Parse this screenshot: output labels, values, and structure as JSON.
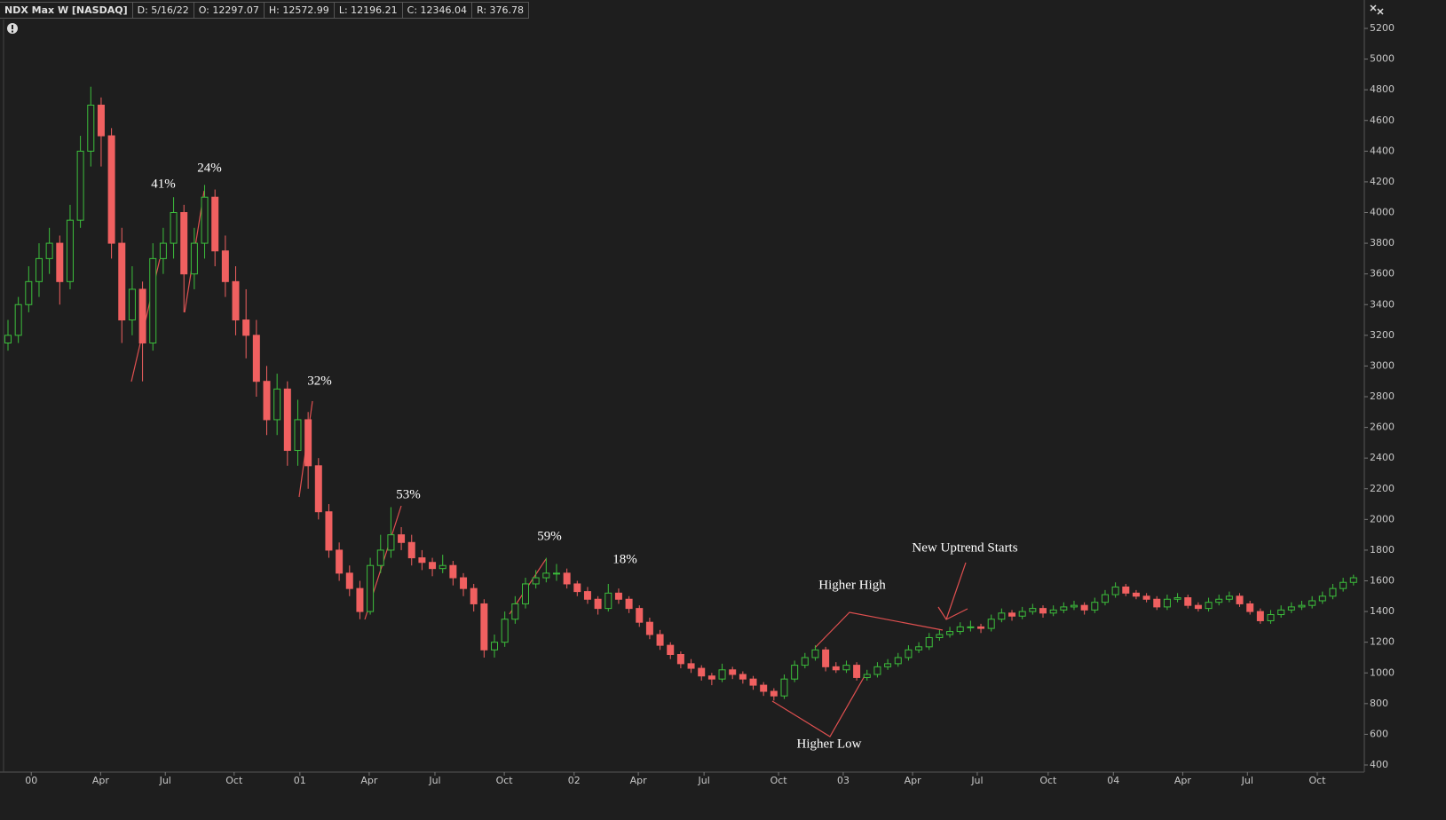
{
  "header": {
    "symbol": "NDX Max W [NASDAQ]",
    "fields": [
      "D: 5/16/22",
      "O: 12297.07",
      "H: 12572.99",
      "L: 12196.21",
      "C: 12346.04",
      "R: 376.78"
    ]
  },
  "chart_data": {
    "type": "candlestick",
    "up_color": "#3cbf3c",
    "down_color": "#f06060",
    "annotations": [
      "41%",
      "24%",
      "32%",
      "53%",
      "59%",
      "18%",
      "Higher High",
      "New Uptrend Starts",
      "Higher Low"
    ],
    "xlim": [
      -1,
      262
    ],
    "xticks": [
      {
        "value": 4.5,
        "label": "00"
      },
      {
        "value": 17.9,
        "label": "Apr"
      },
      {
        "value": 30.4,
        "label": "Jul"
      },
      {
        "value": 43.7,
        "label": "Oct"
      },
      {
        "value": 56.4,
        "label": "01"
      },
      {
        "value": 69.8,
        "label": "Apr"
      },
      {
        "value": 82.5,
        "label": "Jul"
      },
      {
        "value": 95.9,
        "label": "Oct"
      },
      {
        "value": 109.4,
        "label": "02"
      },
      {
        "value": 121.8,
        "label": "Apr"
      },
      {
        "value": 134.5,
        "label": "Jul"
      },
      {
        "value": 148.9,
        "label": "Oct"
      },
      {
        "value": 161.4,
        "label": "03"
      },
      {
        "value": 174.8,
        "label": "Apr"
      },
      {
        "value": 187.3,
        "label": "Jul"
      },
      {
        "value": 201,
        "label": "Oct"
      },
      {
        "value": 213.6,
        "label": "04"
      },
      {
        "value": 227,
        "label": "Apr"
      },
      {
        "value": 239.5,
        "label": "Jul"
      },
      {
        "value": 253,
        "label": "Oct"
      }
    ],
    "ylim": [
      400,
      5200
    ],
    "yticks": [
      400,
      600,
      800,
      1000,
      1200,
      1400,
      1600,
      1800,
      2000,
      2200,
      2400,
      2600,
      2800,
      3000,
      3200,
      3400,
      3600,
      3800,
      4000,
      4200,
      4400,
      4600,
      4800,
      5000,
      5200
    ],
    "x": [
      0,
      2,
      4,
      6,
      8,
      10,
      12,
      14,
      16,
      18,
      20,
      22,
      24,
      26,
      28,
      30,
      32,
      34,
      36,
      38,
      40,
      42,
      44,
      46,
      48,
      50,
      52,
      54,
      56,
      58,
      60,
      62,
      64,
      66,
      68,
      70,
      72,
      74,
      76,
      78,
      80,
      82,
      84,
      86,
      88,
      90,
      92,
      94,
      96,
      98,
      100,
      102,
      104,
      106,
      108,
      110,
      112,
      114,
      116,
      118,
      120,
      122,
      124,
      126,
      128,
      130,
      132,
      134,
      136,
      138,
      140,
      142,
      144,
      146,
      148,
      150,
      152,
      154,
      156,
      158,
      160,
      162,
      164,
      166,
      168,
      170,
      172,
      174,
      176,
      178,
      180,
      182,
      184,
      186,
      188,
      190,
      192,
      194,
      196,
      198,
      200,
      202,
      204,
      206,
      208,
      210,
      212,
      214,
      216,
      218,
      220,
      222,
      224,
      226,
      228,
      230,
      232,
      234,
      236,
      238,
      240,
      242,
      244,
      246,
      248,
      250,
      252,
      254,
      256,
      258,
      260
    ],
    "ohlc": [
      [
        3150,
        3300,
        3100,
        3200
      ],
      [
        3200,
        3450,
        3150,
        3400
      ],
      [
        3400,
        3650,
        3350,
        3550
      ],
      [
        3550,
        3800,
        3450,
        3700
      ],
      [
        3700,
        3900,
        3600,
        3800
      ],
      [
        3800,
        3850,
        3400,
        3550
      ],
      [
        3550,
        4050,
        3500,
        3950
      ],
      [
        3950,
        4500,
        3900,
        4400
      ],
      [
        4400,
        4820,
        4300,
        4700
      ],
      [
        4700,
        4750,
        4300,
        4500
      ],
      [
        4500,
        4550,
        3700,
        3800
      ],
      [
        3800,
        3900,
        3150,
        3300
      ],
      [
        3300,
        3650,
        3200,
        3500
      ],
      [
        3500,
        3550,
        2900,
        3150
      ],
      [
        3150,
        3800,
        3100,
        3700
      ],
      [
        3700,
        3900,
        3600,
        3800
      ],
      [
        3800,
        4100,
        3700,
        4000
      ],
      [
        4000,
        4050,
        3350,
        3600
      ],
      [
        3600,
        3900,
        3500,
        3800
      ],
      [
        3800,
        4180,
        3700,
        4100
      ],
      [
        4100,
        4150,
        3650,
        3750
      ],
      [
        3750,
        3850,
        3450,
        3550
      ],
      [
        3550,
        3650,
        3200,
        3300
      ],
      [
        3300,
        3500,
        3050,
        3200
      ],
      [
        3200,
        3300,
        2800,
        2900
      ],
      [
        2900,
        3000,
        2550,
        2650
      ],
      [
        2650,
        2950,
        2550,
        2850
      ],
      [
        2850,
        2900,
        2350,
        2450
      ],
      [
        2450,
        2780,
        2350,
        2650
      ],
      [
        2650,
        2700,
        2200,
        2350
      ],
      [
        2350,
        2400,
        2000,
        2050
      ],
      [
        2050,
        2100,
        1750,
        1800
      ],
      [
        1800,
        1850,
        1600,
        1650
      ],
      [
        1650,
        1700,
        1500,
        1550
      ],
      [
        1550,
        1600,
        1350,
        1400
      ],
      [
        1400,
        1750,
        1380,
        1700
      ],
      [
        1700,
        1900,
        1650,
        1800
      ],
      [
        1800,
        2080,
        1750,
        1900
      ],
      [
        1900,
        1950,
        1800,
        1850
      ],
      [
        1850,
        1900,
        1700,
        1750
      ],
      [
        1750,
        1800,
        1670,
        1720
      ],
      [
        1720,
        1750,
        1630,
        1680
      ],
      [
        1680,
        1770,
        1650,
        1700
      ],
      [
        1700,
        1730,
        1570,
        1620
      ],
      [
        1620,
        1650,
        1500,
        1550
      ],
      [
        1550,
        1580,
        1400,
        1450
      ],
      [
        1450,
        1480,
        1100,
        1150
      ],
      [
        1150,
        1250,
        1100,
        1200
      ],
      [
        1200,
        1400,
        1170,
        1350
      ],
      [
        1350,
        1500,
        1320,
        1450
      ],
      [
        1450,
        1620,
        1420,
        1580
      ],
      [
        1580,
        1670,
        1550,
        1620
      ],
      [
        1620,
        1750,
        1590,
        1650
      ],
      [
        1650,
        1710,
        1600,
        1650
      ],
      [
        1650,
        1680,
        1550,
        1580
      ],
      [
        1580,
        1600,
        1500,
        1530
      ],
      [
        1530,
        1560,
        1450,
        1480
      ],
      [
        1480,
        1500,
        1380,
        1420
      ],
      [
        1420,
        1580,
        1400,
        1520
      ],
      [
        1520,
        1550,
        1450,
        1480
      ],
      [
        1480,
        1500,
        1390,
        1420
      ],
      [
        1420,
        1440,
        1300,
        1330
      ],
      [
        1330,
        1360,
        1220,
        1250
      ],
      [
        1250,
        1280,
        1150,
        1180
      ],
      [
        1180,
        1200,
        1090,
        1120
      ],
      [
        1120,
        1140,
        1030,
        1060
      ],
      [
        1060,
        1090,
        1000,
        1030
      ],
      [
        1030,
        1050,
        950,
        980
      ],
      [
        980,
        1000,
        920,
        960
      ],
      [
        960,
        1060,
        940,
        1020
      ],
      [
        1020,
        1040,
        960,
        990
      ],
      [
        990,
        1010,
        930,
        960
      ],
      [
        960,
        980,
        890,
        920
      ],
      [
        920,
        940,
        850,
        880
      ],
      [
        880,
        900,
        820,
        850
      ],
      [
        850,
        990,
        830,
        960
      ],
      [
        960,
        1080,
        940,
        1050
      ],
      [
        1050,
        1130,
        1030,
        1100
      ],
      [
        1100,
        1180,
        1080,
        1150
      ],
      [
        1150,
        1170,
        1010,
        1040
      ],
      [
        1040,
        1070,
        1000,
        1020
      ],
      [
        1020,
        1080,
        1000,
        1050
      ],
      [
        1050,
        1070,
        950,
        970
      ],
      [
        970,
        1020,
        950,
        990
      ],
      [
        990,
        1070,
        970,
        1040
      ],
      [
        1040,
        1090,
        1020,
        1060
      ],
      [
        1060,
        1130,
        1040,
        1100
      ],
      [
        1100,
        1180,
        1080,
        1150
      ],
      [
        1150,
        1200,
        1130,
        1170
      ],
      [
        1170,
        1260,
        1150,
        1230
      ],
      [
        1230,
        1280,
        1210,
        1250
      ],
      [
        1250,
        1300,
        1230,
        1270
      ],
      [
        1270,
        1330,
        1250,
        1300
      ],
      [
        1300,
        1340,
        1270,
        1300
      ],
      [
        1300,
        1320,
        1260,
        1290
      ],
      [
        1290,
        1380,
        1270,
        1350
      ],
      [
        1350,
        1420,
        1330,
        1390
      ],
      [
        1390,
        1410,
        1340,
        1370
      ],
      [
        1370,
        1430,
        1350,
        1400
      ],
      [
        1400,
        1450,
        1380,
        1420
      ],
      [
        1420,
        1440,
        1360,
        1390
      ],
      [
        1390,
        1440,
        1370,
        1410
      ],
      [
        1410,
        1460,
        1390,
        1430
      ],
      [
        1430,
        1470,
        1410,
        1440
      ],
      [
        1440,
        1460,
        1380,
        1410
      ],
      [
        1410,
        1490,
        1390,
        1460
      ],
      [
        1460,
        1540,
        1440,
        1510
      ],
      [
        1510,
        1590,
        1490,
        1560
      ],
      [
        1560,
        1580,
        1500,
        1520
      ],
      [
        1520,
        1540,
        1480,
        1500
      ],
      [
        1500,
        1520,
        1460,
        1480
      ],
      [
        1480,
        1500,
        1410,
        1430
      ],
      [
        1430,
        1510,
        1410,
        1480
      ],
      [
        1480,
        1520,
        1460,
        1490
      ],
      [
        1490,
        1510,
        1420,
        1440
      ],
      [
        1440,
        1460,
        1400,
        1420
      ],
      [
        1420,
        1490,
        1400,
        1460
      ],
      [
        1460,
        1510,
        1440,
        1480
      ],
      [
        1480,
        1530,
        1460,
        1500
      ],
      [
        1500,
        1520,
        1430,
        1450
      ],
      [
        1450,
        1470,
        1380,
        1400
      ],
      [
        1400,
        1420,
        1320,
        1340
      ],
      [
        1340,
        1410,
        1320,
        1380
      ],
      [
        1380,
        1440,
        1360,
        1410
      ],
      [
        1410,
        1460,
        1390,
        1430
      ],
      [
        1430,
        1470,
        1410,
        1440
      ],
      [
        1440,
        1500,
        1420,
        1470
      ],
      [
        1470,
        1530,
        1450,
        1500
      ],
      [
        1500,
        1580,
        1480,
        1550
      ],
      [
        1550,
        1620,
        1530,
        1590
      ],
      [
        1590,
        1640,
        1570,
        1620
      ]
    ]
  }
}
